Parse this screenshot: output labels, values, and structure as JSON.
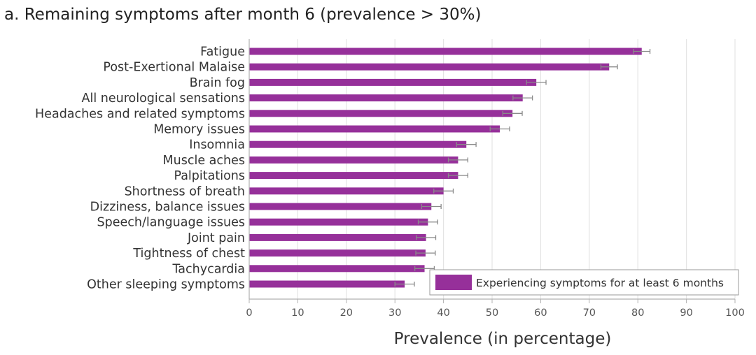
{
  "chart_data": {
    "type": "bar",
    "orientation": "horizontal",
    "title": "a. Remaining symptoms after month 6 (prevalence > 30%)",
    "xlabel": "Prevalence (in percentage)",
    "ylabel": "",
    "xlim": [
      0,
      100
    ],
    "xticks": [
      0,
      10,
      20,
      30,
      40,
      50,
      60,
      70,
      80,
      90,
      100
    ],
    "grid": true,
    "legend_position": "bottom-right",
    "colors": {
      "bar": "#96309a",
      "error": "#8a8a8a",
      "grid": "#e4e4e4",
      "axis": "#b0b0b0"
    },
    "series": [
      {
        "name": "Experiencing symptoms for at least 6 months",
        "categories": [
          "Fatigue",
          "Post-Exertional Malaise",
          "Brain fog",
          "All neurological sensations",
          "Headaches and related symptoms",
          "Memory issues",
          "Insomnia",
          "Muscle aches",
          "Palpitations",
          "Shortness of breath",
          "Dizziness, balance issues",
          "Speech/language issues",
          "Joint pain",
          "Tightness of chest",
          "Tachycardia",
          "Other sleeping symptoms"
        ],
        "values": [
          80.8,
          74.1,
          59.1,
          56.3,
          54.2,
          51.6,
          44.7,
          43.0,
          43.0,
          40.0,
          37.5,
          36.8,
          36.4,
          36.3,
          36.1,
          32.0
        ],
        "error": [
          1.7,
          1.7,
          2.0,
          2.0,
          2.0,
          2.0,
          2.0,
          2.0,
          2.0,
          2.0,
          2.0,
          2.0,
          2.0,
          2.0,
          2.0,
          2.0
        ]
      }
    ]
  }
}
